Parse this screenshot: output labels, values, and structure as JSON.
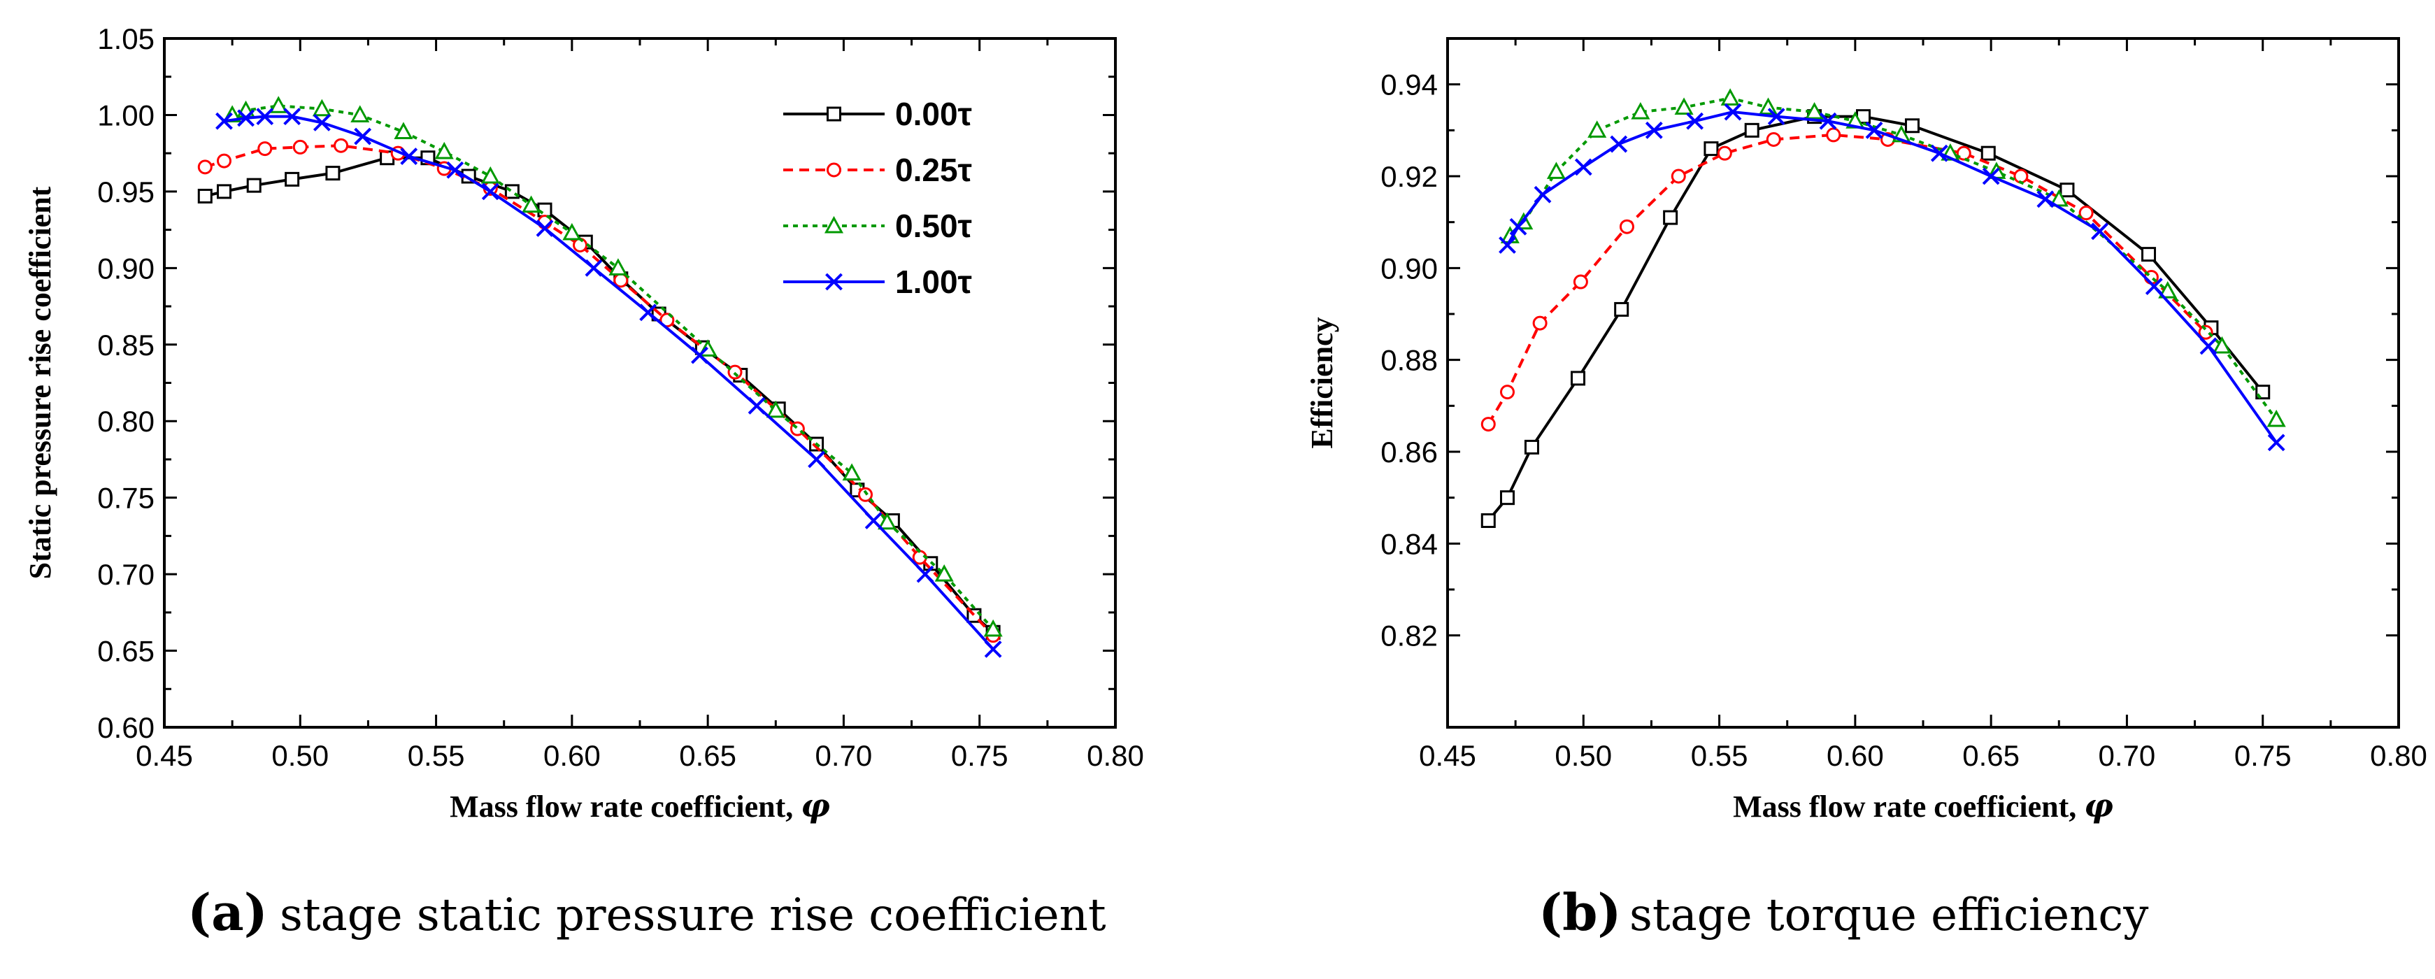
{
  "chart_data": [
    {
      "type": "line",
      "panel": "a",
      "caption": "stage static pressure rise coefficient",
      "xlabel": "Mass flow rate coefficient, ",
      "xlabel_symbol": "φ",
      "ylabel": "Static pressure rise coefficient",
      "xlim": [
        0.45,
        0.8
      ],
      "ylim": [
        0.6,
        1.05
      ],
      "x_ticks": [
        "0.45",
        "0.50",
        "0.55",
        "0.60",
        "0.65",
        "0.70",
        "0.75",
        "0.80"
      ],
      "y_ticks": [
        "0.60",
        "0.65",
        "0.70",
        "0.75",
        "0.80",
        "0.85",
        "0.90",
        "0.95",
        "1.00",
        "1.05"
      ],
      "legend_position": "top-right",
      "series": [
        {
          "name": "0.00τ",
          "color": "#000000",
          "dash": "solid",
          "marker": "square",
          "x": [
            0.465,
            0.472,
            0.483,
            0.497,
            0.512,
            0.532,
            0.547,
            0.562,
            0.578,
            0.59,
            0.605,
            0.618,
            0.632,
            0.648,
            0.662,
            0.676,
            0.69,
            0.705,
            0.718,
            0.732,
            0.748,
            0.755
          ],
          "y": [
            0.947,
            0.95,
            0.954,
            0.958,
            0.962,
            0.972,
            0.972,
            0.96,
            0.95,
            0.938,
            0.917,
            0.893,
            0.87,
            0.848,
            0.83,
            0.808,
            0.785,
            0.755,
            0.735,
            0.707,
            0.673,
            0.662
          ]
        },
        {
          "name": "0.25τ",
          "color": "#ff0000",
          "dash": "dashed",
          "marker": "circle",
          "x": [
            0.465,
            0.472,
            0.487,
            0.5,
            0.515,
            0.536,
            0.553,
            0.57,
            0.59,
            0.603,
            0.618,
            0.635,
            0.66,
            0.683,
            0.708,
            0.728,
            0.755
          ],
          "y": [
            0.966,
            0.97,
            0.978,
            0.979,
            0.98,
            0.975,
            0.965,
            0.952,
            0.93,
            0.915,
            0.892,
            0.866,
            0.832,
            0.795,
            0.752,
            0.711,
            0.66
          ]
        },
        {
          "name": "0.50τ",
          "color": "#009900",
          "dash": "dotted",
          "marker": "triangle",
          "x": [
            0.475,
            0.48,
            0.492,
            0.508,
            0.522,
            0.538,
            0.553,
            0.57,
            0.585,
            0.6,
            0.617,
            0.65,
            0.675,
            0.703,
            0.716,
            0.737,
            0.755
          ],
          "y": [
            1.0,
            1.003,
            1.006,
            1.004,
            1.0,
            0.989,
            0.976,
            0.96,
            0.941,
            0.923,
            0.9,
            0.847,
            0.807,
            0.766,
            0.734,
            0.7,
            0.664
          ]
        },
        {
          "name": "1.00τ",
          "color": "#0000ff",
          "dash": "solid",
          "marker": "cross",
          "x": [
            0.472,
            0.48,
            0.487,
            0.497,
            0.508,
            0.523,
            0.54,
            0.557,
            0.57,
            0.59,
            0.608,
            0.628,
            0.647,
            0.668,
            0.69,
            0.711,
            0.73,
            0.755
          ],
          "y": [
            0.996,
            0.998,
            0.999,
            0.999,
            0.995,
            0.986,
            0.973,
            0.964,
            0.95,
            0.926,
            0.9,
            0.871,
            0.843,
            0.81,
            0.775,
            0.735,
            0.7,
            0.651
          ]
        }
      ]
    },
    {
      "type": "line",
      "panel": "b",
      "caption": "stage torque efficiency",
      "xlabel": "Mass flow rate coefficient,  ",
      "xlabel_symbol": "φ",
      "ylabel": "Efficiency",
      "xlim": [
        0.45,
        0.8
      ],
      "ylim": [
        0.8,
        0.95
      ],
      "x_ticks": [
        "0.45",
        "0.50",
        "0.55",
        "0.60",
        "0.65",
        "0.70",
        "0.75",
        "0.80"
      ],
      "y_ticks": [
        "0.82",
        "0.84",
        "0.86",
        "0.88",
        "0.90",
        "0.92",
        "0.94"
      ],
      "series": [
        {
          "name": "0.00τ",
          "color": "#000000",
          "dash": "solid",
          "marker": "square",
          "x": [
            0.465,
            0.472,
            0.481,
            0.498,
            0.514,
            0.532,
            0.547,
            0.562,
            0.585,
            0.603,
            0.621,
            0.649,
            0.678,
            0.708,
            0.731,
            0.75
          ],
          "y": [
            0.845,
            0.85,
            0.861,
            0.876,
            0.891,
            0.911,
            0.926,
            0.93,
            0.933,
            0.933,
            0.931,
            0.925,
            0.917,
            0.903,
            0.887,
            0.873
          ]
        },
        {
          "name": "0.25τ",
          "color": "#ff0000",
          "dash": "dashed",
          "marker": "circle",
          "x": [
            0.465,
            0.472,
            0.484,
            0.499,
            0.516,
            0.535,
            0.552,
            0.57,
            0.592,
            0.612,
            0.64,
            0.661,
            0.685,
            0.709,
            0.729
          ],
          "y": [
            0.866,
            0.873,
            0.888,
            0.897,
            0.909,
            0.92,
            0.925,
            0.928,
            0.929,
            0.928,
            0.925,
            0.92,
            0.912,
            0.898,
            0.886
          ]
        },
        {
          "name": "0.50τ",
          "color": "#009900",
          "dash": "dotted",
          "marker": "triangle",
          "x": [
            0.473,
            0.478,
            0.49,
            0.505,
            0.521,
            0.537,
            0.554,
            0.568,
            0.585,
            0.6,
            0.617,
            0.635,
            0.652,
            0.675,
            0.715,
            0.735,
            0.755
          ],
          "y": [
            0.907,
            0.91,
            0.921,
            0.93,
            0.934,
            0.935,
            0.937,
            0.935,
            0.934,
            0.932,
            0.929,
            0.925,
            0.921,
            0.915,
            0.895,
            0.883,
            0.867
          ]
        },
        {
          "name": "1.00τ",
          "color": "#0000ff",
          "dash": "solid",
          "marker": "cross",
          "x": [
            0.472,
            0.476,
            0.485,
            0.5,
            0.513,
            0.526,
            0.541,
            0.555,
            0.571,
            0.59,
            0.607,
            0.631,
            0.65,
            0.67,
            0.69,
            0.71,
            0.73,
            0.755
          ],
          "y": [
            0.905,
            0.909,
            0.916,
            0.922,
            0.927,
            0.93,
            0.932,
            0.934,
            0.933,
            0.932,
            0.93,
            0.925,
            0.92,
            0.915,
            0.908,
            0.896,
            0.883,
            0.862
          ]
        }
      ]
    }
  ],
  "panels": [
    {
      "label": "(a)",
      "caption": "stage static pressure rise coefficient"
    },
    {
      "label": "(b)",
      "caption": "stage torque efficiency"
    }
  ]
}
